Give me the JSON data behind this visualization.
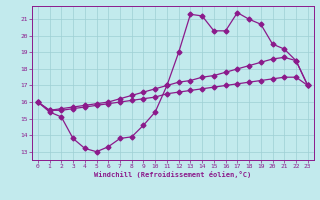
{
  "xlabel": "Windchill (Refroidissement éolien,°C)",
  "bg_color": "#c2eaed",
  "line_color": "#8b1a8b",
  "grid_color": "#9ecfd4",
  "spine_color": "#8b1a8b",
  "xlim": [
    -0.5,
    23.5
  ],
  "ylim": [
    12.5,
    21.8
  ],
  "yticks": [
    13,
    14,
    15,
    16,
    17,
    18,
    19,
    20,
    21
  ],
  "xticks": [
    0,
    1,
    2,
    3,
    4,
    5,
    6,
    7,
    8,
    9,
    10,
    11,
    12,
    13,
    14,
    15,
    16,
    17,
    18,
    19,
    20,
    21,
    22,
    23
  ],
  "line1_x": [
    0,
    1,
    2,
    3,
    4,
    5,
    6,
    7,
    8,
    9,
    10,
    11,
    12,
    13,
    14,
    15,
    16,
    17,
    18,
    19,
    20,
    21,
    22,
    23
  ],
  "line1_y": [
    16.0,
    15.4,
    15.1,
    13.8,
    13.2,
    13.0,
    13.3,
    13.8,
    13.9,
    14.6,
    15.4,
    17.0,
    19.0,
    21.3,
    21.2,
    20.3,
    20.3,
    21.4,
    21.0,
    20.7,
    19.5,
    19.2,
    18.5,
    17.0
  ],
  "line2_x": [
    0,
    1,
    2,
    3,
    4,
    5,
    6,
    7,
    8,
    9,
    10,
    11,
    12,
    13,
    14,
    15,
    16,
    17,
    18,
    19,
    20,
    21,
    22,
    23
  ],
  "line2_y": [
    16.0,
    15.5,
    15.6,
    15.7,
    15.8,
    15.9,
    16.0,
    16.2,
    16.4,
    16.6,
    16.8,
    17.0,
    17.2,
    17.3,
    17.5,
    17.6,
    17.8,
    18.0,
    18.2,
    18.4,
    18.6,
    18.7,
    18.5,
    17.0
  ],
  "line3_x": [
    0,
    1,
    2,
    3,
    4,
    5,
    6,
    7,
    8,
    9,
    10,
    11,
    12,
    13,
    14,
    15,
    16,
    17,
    18,
    19,
    20,
    21,
    22,
    23
  ],
  "line3_y": [
    16.0,
    15.5,
    15.5,
    15.6,
    15.7,
    15.8,
    15.9,
    16.0,
    16.1,
    16.2,
    16.3,
    16.5,
    16.6,
    16.7,
    16.8,
    16.9,
    17.0,
    17.1,
    17.2,
    17.3,
    17.4,
    17.5,
    17.5,
    17.0
  ]
}
